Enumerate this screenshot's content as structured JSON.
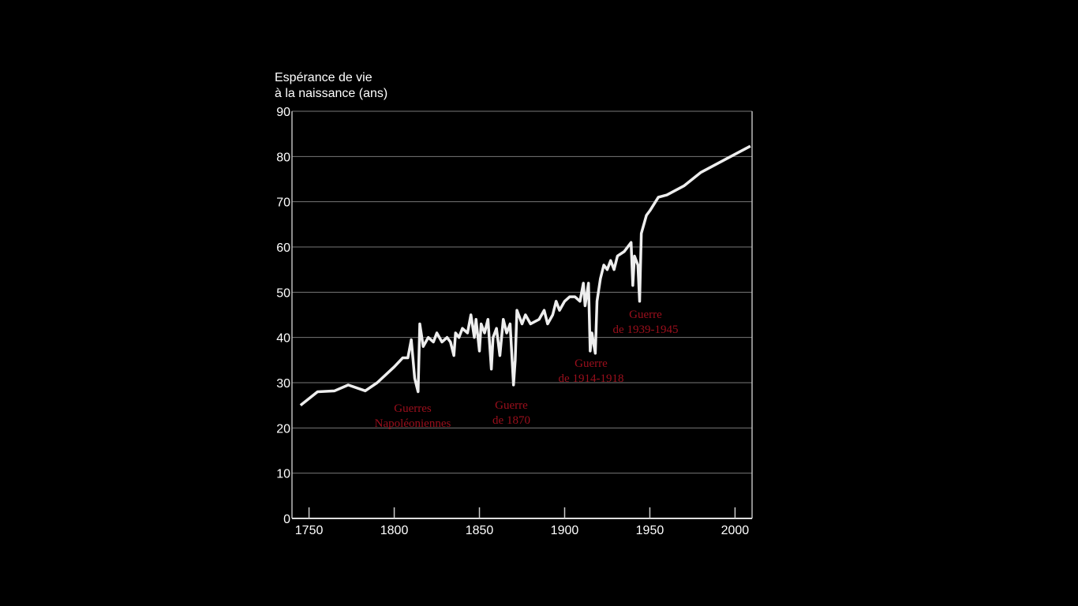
{
  "chart_data": {
    "type": "line",
    "y_label": [
      "Espérance de vie",
      "à la naissance (ans)"
    ],
    "x": [
      1745,
      1755,
      1765,
      1773,
      1783,
      1790,
      1800,
      1805,
      1808,
      1810,
      1812,
      1814,
      1815,
      1817,
      1820,
      1823,
      1825,
      1828,
      1831,
      1833,
      1835,
      1836,
      1838,
      1840,
      1843,
      1845,
      1847,
      1848,
      1850,
      1851,
      1853,
      1855,
      1857,
      1858,
      1860,
      1862,
      1864,
      1866,
      1868,
      1870,
      1871,
      1872,
      1875,
      1877,
      1880,
      1885,
      1888,
      1890,
      1893,
      1895,
      1897,
      1900,
      1903,
      1906,
      1909,
      1911,
      1912,
      1914,
      1915,
      1916,
      1918,
      1919,
      1921,
      1923,
      1925,
      1927,
      1929,
      1931,
      1935,
      1939,
      1940,
      1941,
      1943,
      1944,
      1945,
      1948,
      1950,
      1955,
      1960,
      1965,
      1970,
      1975,
      1980,
      1990,
      2000,
      2009
    ],
    "series": [
      {
        "name": null,
        "color": "#eeeeee",
        "values": [
          25,
          28,
          28.2,
          29.5,
          28.2,
          30,
          33.5,
          35.5,
          35.5,
          39.5,
          31,
          28,
          43,
          38,
          40,
          39,
          41,
          39,
          40,
          39,
          36,
          41,
          40,
          42,
          41,
          45,
          40,
          44,
          37,
          43,
          41,
          44,
          33,
          40,
          42,
          36,
          44,
          41,
          43,
          29.5,
          35,
          46,
          43,
          45,
          43,
          44,
          46,
          43,
          45,
          48,
          46,
          48,
          49,
          49,
          48,
          52,
          47,
          52,
          37,
          41,
          36.5,
          48,
          53,
          56,
          55,
          57,
          55,
          58,
          59,
          61,
          51.5,
          58,
          56,
          48,
          63,
          67,
          68,
          71,
          71.5,
          72.5,
          73.5,
          75,
          76.5,
          78.5,
          80.5,
          82.3
        ]
      }
    ],
    "xlim": [
      1740,
      2010
    ],
    "ylim": [
      0,
      90
    ],
    "xticks": [
      1750,
      1800,
      1850,
      1900,
      1950,
      2000
    ],
    "yticks": [
      0,
      10,
      20,
      30,
      40,
      50,
      60,
      70,
      80,
      90
    ],
    "grid": true,
    "annotations": [
      [
        "Guerres",
        "Napoléoniennes"
      ],
      [
        "Guerre",
        "de 1870"
      ],
      [
        "Guerre",
        "de 1914-1918"
      ],
      [
        "Guerre",
        "de 1939-1945"
      ]
    ],
    "annotation_color": "#9b0f1c"
  }
}
